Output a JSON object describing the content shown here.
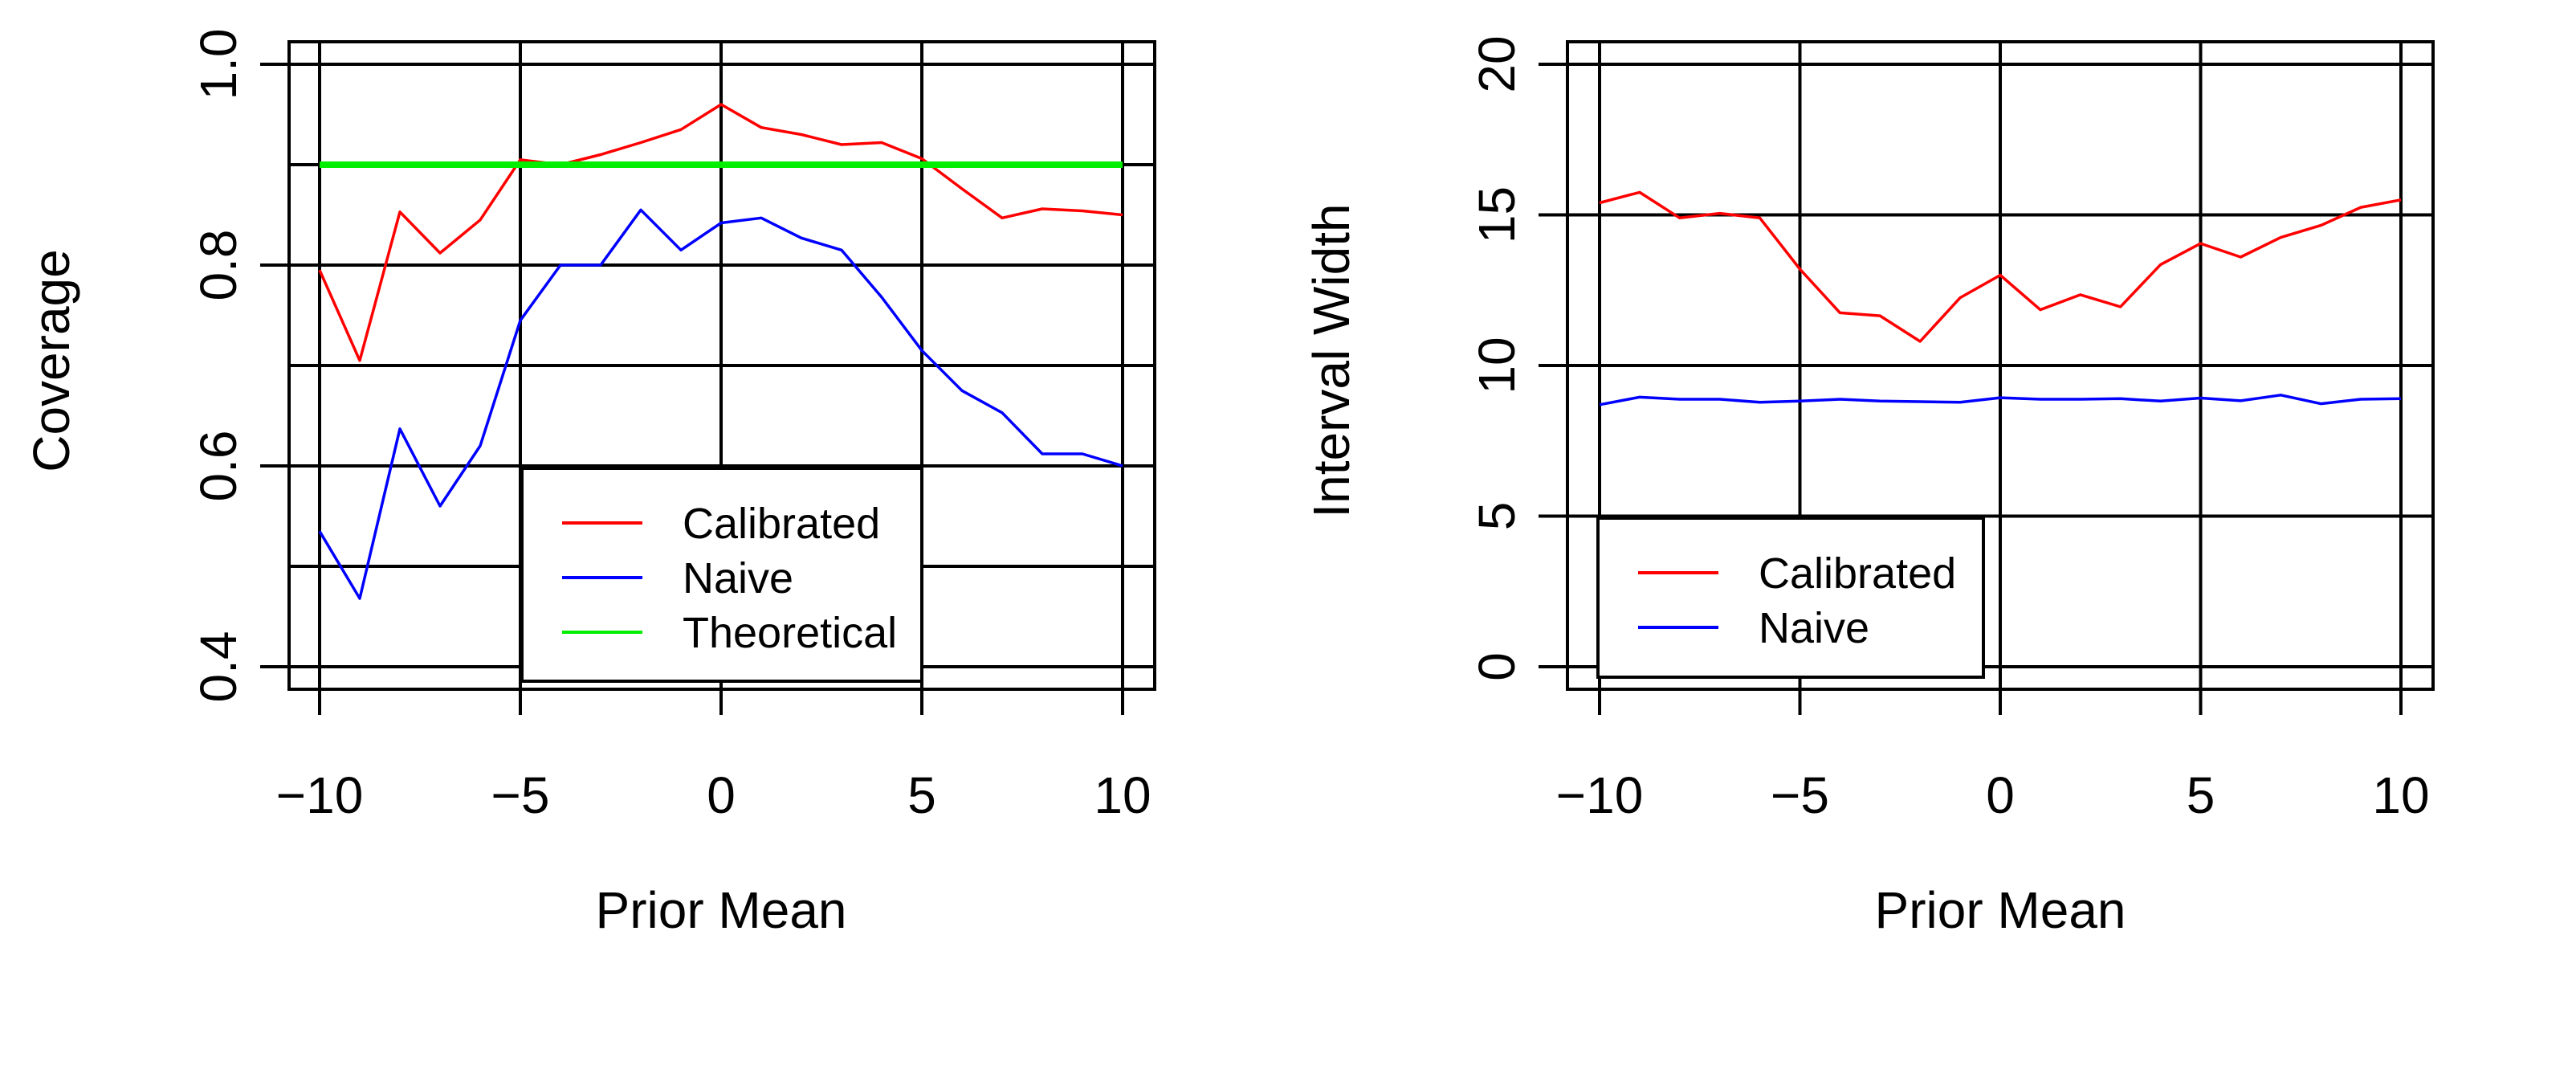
{
  "colors": {
    "calibrated": "#ff0000",
    "naive": "#0000ff",
    "theoretical": "#00ee00",
    "grid": "#000000",
    "background": "#ffffff"
  },
  "chart_data": [
    {
      "type": "line",
      "title": "",
      "xlabel": "Prior Mean",
      "ylabel": "Coverage",
      "xlim": [
        -10,
        10
      ],
      "ylim": [
        0.4,
        1.0
      ],
      "x_ticks": [
        -10,
        -5,
        0,
        5,
        10
      ],
      "x_tick_labels": [
        "−10",
        "−5",
        "0",
        "5",
        "10"
      ],
      "y_ticks": [
        0.4,
        0.6,
        0.8,
        1.0
      ],
      "y_tick_labels": [
        "0.4",
        "0.6",
        "0.8",
        "1.0"
      ],
      "grid": true,
      "legend_position": "bottom-center",
      "x": [
        -10,
        -9,
        -8,
        -7,
        -6,
        -5,
        -4,
        -3,
        -2,
        -1,
        0,
        1,
        2,
        3,
        4,
        5,
        6,
        7,
        8,
        9,
        10
      ],
      "series": [
        {
          "name": "Calibrated",
          "color": "#ff0000",
          "values": [
            0.795,
            0.705,
            0.853,
            0.812,
            0.845,
            0.905,
            0.9,
            0.91,
            0.922,
            0.935,
            0.96,
            0.937,
            0.93,
            0.92,
            0.922,
            0.906,
            0.876,
            0.847,
            0.856,
            0.854,
            0.85
          ]
        },
        {
          "name": "Naive",
          "color": "#0000ff",
          "values": [
            0.535,
            0.468,
            0.637,
            0.56,
            0.62,
            0.745,
            0.8,
            0.8,
            0.855,
            0.815,
            0.842,
            0.847,
            0.827,
            0.815,
            0.768,
            0.715,
            0.675,
            0.653,
            0.612,
            0.612,
            0.6
          ]
        },
        {
          "name": "Theoretical",
          "color": "#00ee00",
          "values": [
            0.9,
            0.9,
            0.9,
            0.9,
            0.9,
            0.9,
            0.9,
            0.9,
            0.9,
            0.9,
            0.9,
            0.9,
            0.9,
            0.9,
            0.9,
            0.9,
            0.9,
            0.9,
            0.9,
            0.9,
            0.9
          ]
        }
      ]
    },
    {
      "type": "line",
      "title": "",
      "xlabel": "Prior Mean",
      "ylabel": "Interval Width",
      "xlim": [
        -10,
        10
      ],
      "ylim": [
        0,
        20
      ],
      "x_ticks": [
        -10,
        -5,
        0,
        5,
        10
      ],
      "x_tick_labels": [
        "−10",
        "−5",
        "0",
        "5",
        "10"
      ],
      "y_ticks": [
        0,
        5,
        10,
        15,
        20
      ],
      "y_tick_labels": [
        "0",
        "5",
        "10",
        "15",
        "20"
      ],
      "grid": true,
      "legend_position": "bottom-left",
      "x": [
        -10,
        -9,
        -8,
        -7,
        -6,
        -5,
        -4,
        -3,
        -2,
        -1,
        0,
        1,
        2,
        3,
        4,
        5,
        6,
        7,
        8,
        9,
        10
      ],
      "series": [
        {
          "name": "Calibrated",
          "color": "#ff0000",
          "values": [
            15.4,
            15.75,
            14.9,
            15.05,
            14.9,
            13.2,
            11.75,
            11.65,
            10.8,
            12.25,
            13.0,
            11.85,
            12.35,
            11.95,
            13.35,
            14.05,
            13.6,
            14.25,
            14.65,
            15.25,
            15.5
          ]
        },
        {
          "name": "Naive",
          "color": "#0000ff",
          "values": [
            8.7,
            8.95,
            8.88,
            8.88,
            8.78,
            8.82,
            8.88,
            8.82,
            8.8,
            8.78,
            8.93,
            8.88,
            8.88,
            8.9,
            8.82,
            8.92,
            8.83,
            9.02,
            8.73,
            8.88,
            8.9
          ]
        }
      ]
    }
  ]
}
